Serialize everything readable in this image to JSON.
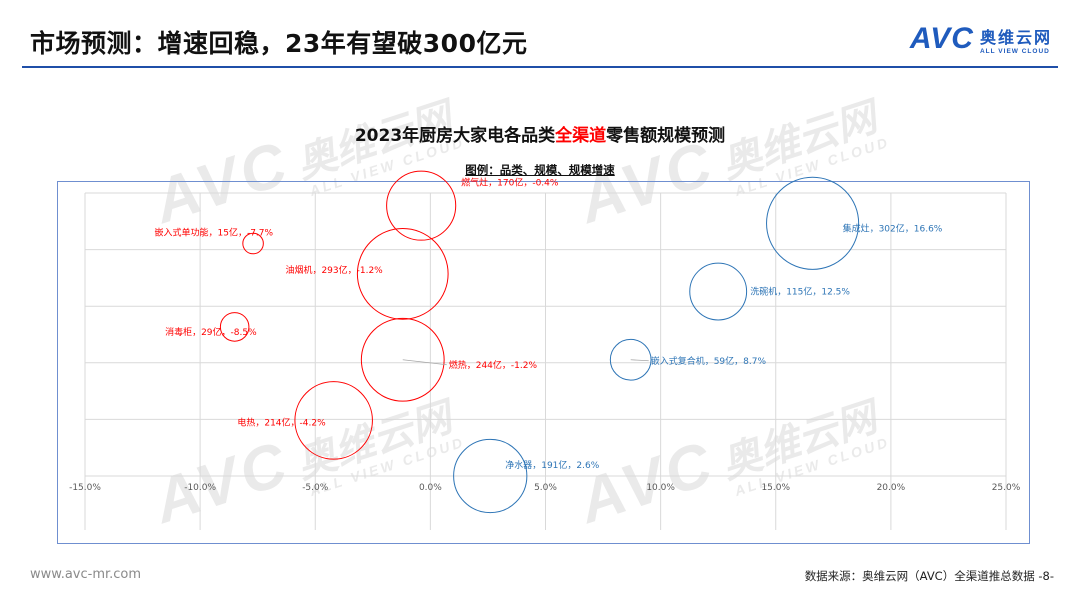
{
  "slide": {
    "title": "市场预测：增速回稳，23年有望破300亿元",
    "logo_mark": "AVC",
    "logo_cn": "奥维云网",
    "logo_en": "ALL VIEW CLOUD",
    "footer_url": "www.avc-mr.com",
    "footer_source": "数据来源：奥维云网（AVC）全渠道推总数据   -8-"
  },
  "chart_data": {
    "type": "scatter",
    "title_pre": "2023年厨房大家电各品类",
    "title_highlight": "全渠道",
    "title_post": "零售额规模预测",
    "subtitle": "图例：品类、规模、规模增速",
    "xlim": [
      -15,
      25
    ],
    "x_ticks": [
      -15,
      -10,
      -5,
      0,
      5,
      10,
      15,
      20,
      25
    ],
    "x_tick_labels": [
      "-15.0%",
      "-10.0%",
      "-5.0%",
      "0.0%",
      "5.0%",
      "10.0%",
      "15.0%",
      "20.0%",
      "25.0%"
    ],
    "grid": true,
    "colors": {
      "negative": "#ff0000",
      "positive": "#2e75b6",
      "grid": "#d9d9d9",
      "leader": "#a6a6a6"
    },
    "points": [
      {
        "label": "燃气灶，170亿，-0.4%",
        "x": -0.4,
        "y": 5.35,
        "size": 170
      },
      {
        "label": "集成灶，302亿，16.6%",
        "x": 16.6,
        "y": 5.0,
        "size": 302
      },
      {
        "label": "嵌入式单功能，15亿，-7.7%",
        "x": -7.7,
        "y": 4.6,
        "size": 15
      },
      {
        "label": "油烟机，293亿，-1.2%",
        "x": -1.2,
        "y": 4.0,
        "size": 293
      },
      {
        "label": "洗碗机，115亿，12.5%",
        "x": 12.5,
        "y": 3.65,
        "size": 115
      },
      {
        "label": "消毒柜，29亿，-8.5%",
        "x": -8.5,
        "y": 2.95,
        "size": 29
      },
      {
        "label": "燃热，244亿，-1.2%",
        "x": -1.2,
        "y": 2.3,
        "size": 244
      },
      {
        "label": "嵌入式复合机，59亿，8.7%",
        "x": 8.7,
        "y": 2.3,
        "size": 59
      },
      {
        "label": "电热，214亿，-4.2%",
        "x": -4.2,
        "y": 1.1,
        "size": 214
      },
      {
        "label": "净水器，191亿，2.6%",
        "x": 2.6,
        "y": 0.0,
        "size": 191
      }
    ]
  }
}
